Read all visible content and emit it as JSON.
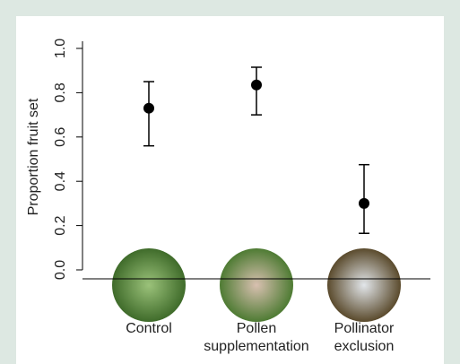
{
  "chart_data": {
    "type": "errorpoint",
    "y_label": "Proportion fruit set",
    "categories": [
      "Control",
      "Pollen supplementation",
      "Pollinator exclusion"
    ],
    "values": [
      0.73,
      0.835,
      0.3
    ],
    "lower": [
      0.56,
      0.7,
      0.165
    ],
    "upper": [
      0.85,
      0.915,
      0.475
    ],
    "color": "#000000",
    "ylim": [
      0,
      1
    ],
    "yticks": [
      {
        "value": 0,
        "label": "0.0"
      },
      {
        "value": 0.2,
        "label": "0.2"
      },
      {
        "value": 0.4,
        "label": "0.4"
      },
      {
        "value": 0.6,
        "label": "0.6"
      },
      {
        "value": 0.8,
        "label": "0.8"
      },
      {
        "value": 1,
        "label": "1.0"
      }
    ]
  }
}
